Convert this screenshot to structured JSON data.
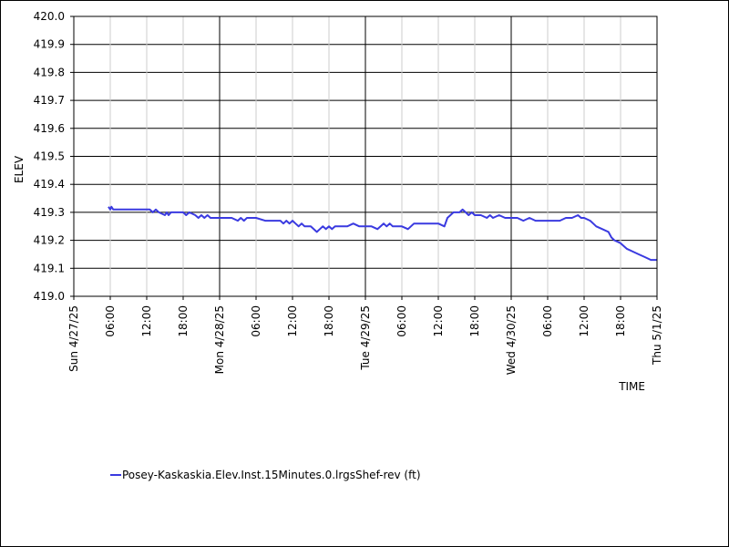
{
  "chart_data": {
    "type": "line",
    "xlabel": "TIME",
    "ylabel": "ELEV",
    "ylim": [
      419.0,
      420.0
    ],
    "y_ticks": [
      "420.0",
      "419.9",
      "419.8",
      "419.7",
      "419.6",
      "419.5",
      "419.4",
      "419.3",
      "419.2",
      "419.1",
      "419.0"
    ],
    "xlim_hours": [
      0,
      96
    ],
    "x_ticks": [
      {
        "h": 0,
        "label": "Sun 4/27/25",
        "major": true
      },
      {
        "h": 6,
        "label": "06:00",
        "major": false
      },
      {
        "h": 12,
        "label": "12:00",
        "major": false
      },
      {
        "h": 18,
        "label": "18:00",
        "major": false
      },
      {
        "h": 24,
        "label": "Mon 4/28/25",
        "major": true
      },
      {
        "h": 30,
        "label": "06:00",
        "major": false
      },
      {
        "h": 36,
        "label": "12:00",
        "major": false
      },
      {
        "h": 42,
        "label": "18:00",
        "major": false
      },
      {
        "h": 48,
        "label": "Tue 4/29/25",
        "major": true
      },
      {
        "h": 54,
        "label": "06:00",
        "major": false
      },
      {
        "h": 60,
        "label": "12:00",
        "major": false
      },
      {
        "h": 66,
        "label": "18:00",
        "major": false
      },
      {
        "h": 72,
        "label": "Wed 4/30/25",
        "major": true
      },
      {
        "h": 78,
        "label": "06:00",
        "major": false
      },
      {
        "h": 84,
        "label": "12:00",
        "major": false
      },
      {
        "h": 90,
        "label": "18:00",
        "major": false
      },
      {
        "h": 96,
        "label": "Thu 5/1/25",
        "major": true
      }
    ],
    "series": [
      {
        "name": "Posey-Kaskaskia.Elev.Inst.15Minutes.0.lrgsShef-rev (ft)",
        "color": "#3a3ae0",
        "x_hours": [
          5.7,
          6.0,
          6.2,
          6.5,
          7.5,
          9.0,
          10.0,
          11.0,
          12.5,
          13.0,
          13.5,
          14.0,
          15.0,
          15.3,
          15.6,
          16.0,
          17.0,
          18.0,
          18.5,
          19.0,
          20.0,
          20.5,
          21.0,
          21.5,
          22.0,
          22.5,
          23.0,
          24.0,
          25.0,
          26.0,
          27.0,
          27.5,
          28.0,
          28.5,
          29.0,
          30.0,
          31.5,
          33.0,
          34.0,
          34.5,
          35.0,
          35.5,
          36.0,
          36.5,
          37.0,
          37.5,
          38.0,
          39.0,
          40.0,
          40.5,
          41.0,
          41.5,
          42.0,
          42.5,
          43.0,
          44.0,
          45.0,
          46.0,
          47.0,
          48.0,
          49.0,
          50.0,
          51.0,
          51.5,
          52.0,
          52.5,
          53.0,
          54.0,
          55.0,
          56.0,
          57.0,
          58.0,
          59.0,
          60.0,
          61.0,
          61.5,
          62.0,
          62.5,
          63.0,
          63.5,
          64.0,
          64.5,
          65.0,
          65.5,
          66.0,
          67.0,
          68.0,
          68.5,
          69.0,
          70.0,
          71.0,
          72.0,
          73.0,
          74.0,
          75.0,
          76.0,
          77.0,
          78.0,
          79.0,
          80.0,
          81.0,
          82.0,
          83.0,
          83.5,
          84.0,
          85.0,
          85.5,
          86.0,
          87.0,
          88.0,
          88.5,
          89.0,
          90.0,
          90.5,
          91.0,
          92.0,
          93.0,
          94.0,
          95.0,
          96.0
        ],
        "values": [
          419.32,
          419.31,
          419.32,
          419.31,
          419.31,
          419.31,
          419.31,
          419.31,
          419.31,
          419.3,
          419.31,
          419.3,
          419.29,
          419.3,
          419.29,
          419.3,
          419.3,
          419.3,
          419.29,
          419.3,
          419.29,
          419.28,
          419.29,
          419.28,
          419.29,
          419.28,
          419.28,
          419.28,
          419.28,
          419.28,
          419.27,
          419.28,
          419.27,
          419.28,
          419.28,
          419.28,
          419.27,
          419.27,
          419.27,
          419.26,
          419.27,
          419.26,
          419.27,
          419.26,
          419.25,
          419.26,
          419.25,
          419.25,
          419.23,
          419.24,
          419.25,
          419.24,
          419.25,
          419.24,
          419.25,
          419.25,
          419.25,
          419.26,
          419.25,
          419.25,
          419.25,
          419.24,
          419.26,
          419.25,
          419.26,
          419.25,
          419.25,
          419.25,
          419.24,
          419.26,
          419.26,
          419.26,
          419.26,
          419.26,
          419.25,
          419.28,
          419.29,
          419.3,
          419.3,
          419.3,
          419.31,
          419.3,
          419.29,
          419.3,
          419.29,
          419.29,
          419.28,
          419.29,
          419.28,
          419.29,
          419.28,
          419.28,
          419.28,
          419.27,
          419.28,
          419.27,
          419.27,
          419.27,
          419.27,
          419.27,
          419.28,
          419.28,
          419.29,
          419.28,
          419.28,
          419.27,
          419.26,
          419.25,
          419.24,
          419.23,
          419.21,
          419.2,
          419.19,
          419.18,
          419.17,
          419.16,
          419.15,
          419.14,
          419.13,
          419.13
        ]
      }
    ],
    "grid": true,
    "legend": "bottom-left"
  }
}
